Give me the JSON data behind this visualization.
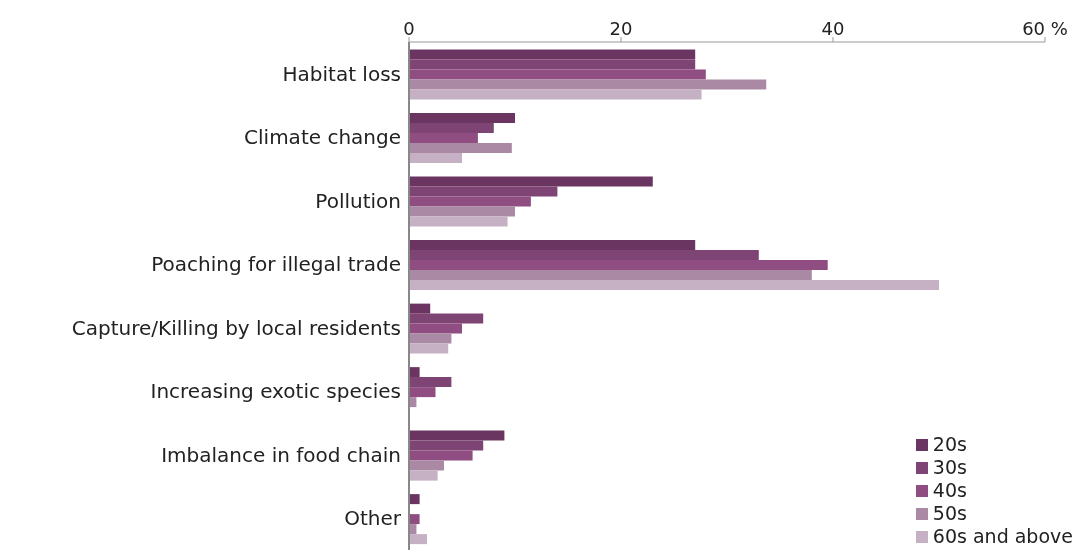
{
  "chart_data": {
    "type": "bar",
    "orientation": "horizontal",
    "categories": [
      "Habitat loss",
      "Climate change",
      "Pollution",
      "Poaching for illegal trade",
      "Capture/Killing by local residents",
      "Increasing exotic species",
      "Imbalance in food chain",
      "Other"
    ],
    "series": [
      {
        "name": "20s",
        "color": "#6b3561",
        "values": [
          27,
          10,
          23,
          27,
          2,
          1,
          9,
          1
        ]
      },
      {
        "name": "30s",
        "color": "#7e4474",
        "values": [
          27,
          8,
          14,
          33,
          7,
          4,
          7,
          null
        ]
      },
      {
        "name": "40s",
        "color": "#8f4d82",
        "values": [
          28,
          6.5,
          11.5,
          39.5,
          5,
          2.5,
          6,
          1
        ]
      },
      {
        "name": "50s",
        "color": "#aa89a4",
        "values": [
          33.7,
          9.7,
          10,
          38,
          4,
          0.7,
          3.3,
          0.7
        ]
      },
      {
        "name": "60s and above",
        "color": "#c5b1c3",
        "values": [
          27.6,
          5,
          9.3,
          50,
          3.7,
          null,
          2.7,
          1.7
        ]
      }
    ],
    "xlim": [
      0,
      60
    ],
    "xticks": [
      0,
      20,
      40,
      {
        "value": 60,
        "label": "60 %"
      }
    ],
    "legend": "bottom right"
  }
}
